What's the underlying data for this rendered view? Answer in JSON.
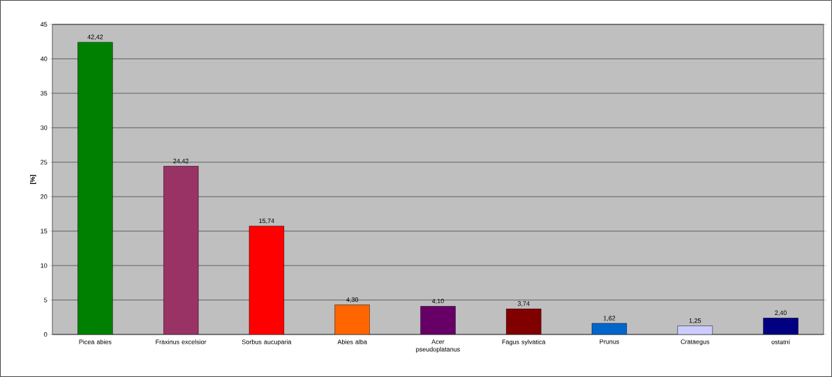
{
  "chart_data": {
    "type": "bar",
    "ylabel": "[%]",
    "categories": [
      "Picea abies",
      "Fraxinus excelsior",
      "Sorbus aucuparia",
      "Abies alba",
      "Acer pseudoplatanus",
      "Fagus sylvatica",
      "Prunus",
      "Crataegus",
      "ostatní"
    ],
    "values": [
      42.42,
      24.42,
      15.74,
      4.3,
      4.1,
      3.74,
      1.62,
      1.25,
      2.4
    ],
    "value_labels": [
      "42,42",
      "24,42",
      "15,74",
      "4,30",
      "4,10",
      "3,74",
      "1,62",
      "1,25",
      "2,40"
    ],
    "colors": [
      "#008000",
      "#993366",
      "#ff0000",
      "#ff6600",
      "#660066",
      "#800000",
      "#0066cc",
      "#ccccff",
      "#000080"
    ],
    "ylim": [
      0,
      45
    ],
    "yticks": [
      0,
      5,
      10,
      15,
      20,
      25,
      30,
      35,
      40,
      45
    ],
    "grid": "y"
  }
}
